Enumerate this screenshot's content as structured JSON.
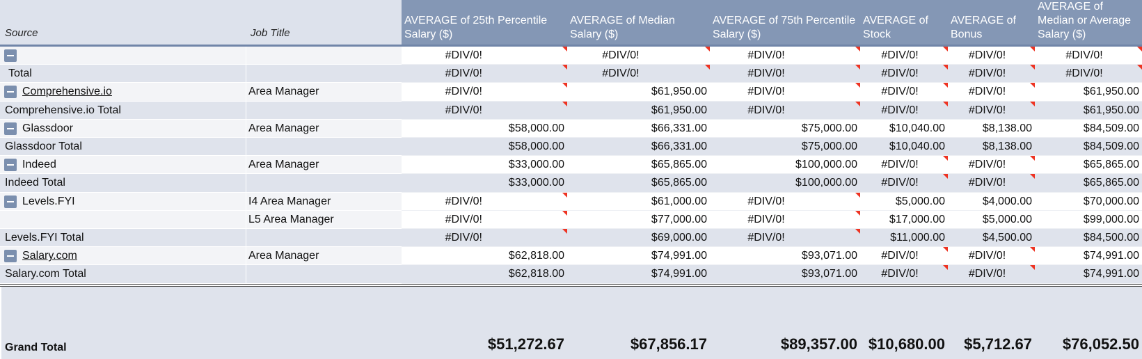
{
  "header": {
    "source": "Source",
    "job_title": "Job Title",
    "columns": [
      "AVERAGE of 25th Percentile Salary ($)",
      "AVERAGE of Median Salary ($)",
      "AVERAGE of 75th Percentile Salary ($)",
      "AVERAGE of Stock",
      "AVERAGE of Bonus",
      "AVERAGE of Median or Average Salary ($)"
    ]
  },
  "table": {
    "rows": [
      {
        "collapsible": true,
        "source": null,
        "job": null,
        "values": [
          "#DIV/0!",
          "#DIV/0!",
          "#DIV/0!",
          "#DIV/0!",
          "#DIV/0!",
          "#DIV/0!"
        ]
      },
      {
        "total": true,
        "source": "Total",
        "job": null,
        "values": [
          "#DIV/0!",
          "#DIV/0!",
          "#DIV/0!",
          "#DIV/0!",
          "#DIV/0!",
          "#DIV/0!"
        ]
      },
      {
        "collapsible": true,
        "link": true,
        "source": "Comprehensive.io",
        "job": "Area Manager",
        "values": [
          "#DIV/0!",
          "$61,950.00",
          "#DIV/0!",
          "#DIV/0!",
          "#DIV/0!",
          "$61,950.00"
        ]
      },
      {
        "total": true,
        "source": "Comprehensive.io Total",
        "job": null,
        "values": [
          "#DIV/0!",
          "$61,950.00",
          "#DIV/0!",
          "#DIV/0!",
          "#DIV/0!",
          "$61,950.00"
        ]
      },
      {
        "collapsible": true,
        "source": "Glassdoor",
        "job": "Area Manager",
        "values": [
          "$58,000.00",
          "$66,331.00",
          "$75,000.00",
          "$10,040.00",
          "$8,138.00",
          "$84,509.00"
        ]
      },
      {
        "total": true,
        "source": "Glassdoor Total",
        "job": null,
        "values": [
          "$58,000.00",
          "$66,331.00",
          "$75,000.00",
          "$10,040.00",
          "$8,138.00",
          "$84,509.00"
        ]
      },
      {
        "collapsible": true,
        "source": "Indeed",
        "job": "Area Manager",
        "values": [
          "$33,000.00",
          "$65,865.00",
          "$100,000.00",
          "#DIV/0!",
          "#DIV/0!",
          "$65,865.00"
        ]
      },
      {
        "total": true,
        "source": "Indeed Total",
        "job": null,
        "values": [
          "$33,000.00",
          "$65,865.00",
          "$100,000.00",
          "#DIV/0!",
          "#DIV/0!",
          "$65,865.00"
        ]
      },
      {
        "collapsible": true,
        "source": "Levels.FYI",
        "job": "I4 Area Manager",
        "values": [
          "#DIV/0!",
          "$61,000.00",
          "#DIV/0!",
          "$5,000.00",
          "$4,000.00",
          "$70,000.00"
        ]
      },
      {
        "source": null,
        "job": "L5 Area Manager",
        "values": [
          "#DIV/0!",
          "$77,000.00",
          "#DIV/0!",
          "$17,000.00",
          "$5,000.00",
          "$99,000.00"
        ]
      },
      {
        "total": true,
        "source": "Levels.FYI Total",
        "job": null,
        "values": [
          "#DIV/0!",
          "$69,000.00",
          "#DIV/0!",
          "$11,000.00",
          "$4,500.00",
          "$84,500.00"
        ]
      },
      {
        "collapsible": true,
        "link": true,
        "source": "Salary.com",
        "job": "Area Manager",
        "values": [
          "$62,818.00",
          "$74,991.00",
          "$93,071.00",
          "#DIV/0!",
          "#DIV/0!",
          "$74,991.00"
        ]
      },
      {
        "total": true,
        "source": "Salary.com Total",
        "job": null,
        "values": [
          "$62,818.00",
          "$74,991.00",
          "$93,071.00",
          "#DIV/0!",
          "#DIV/0!",
          "$74,991.00"
        ]
      }
    ]
  },
  "grand_total": {
    "label": "Grand Total",
    "values": [
      "$51,272.67",
      "$67,856.17",
      "$89,357.00",
      "$10,680.00",
      "$5,712.67",
      "$76,052.50"
    ]
  }
}
